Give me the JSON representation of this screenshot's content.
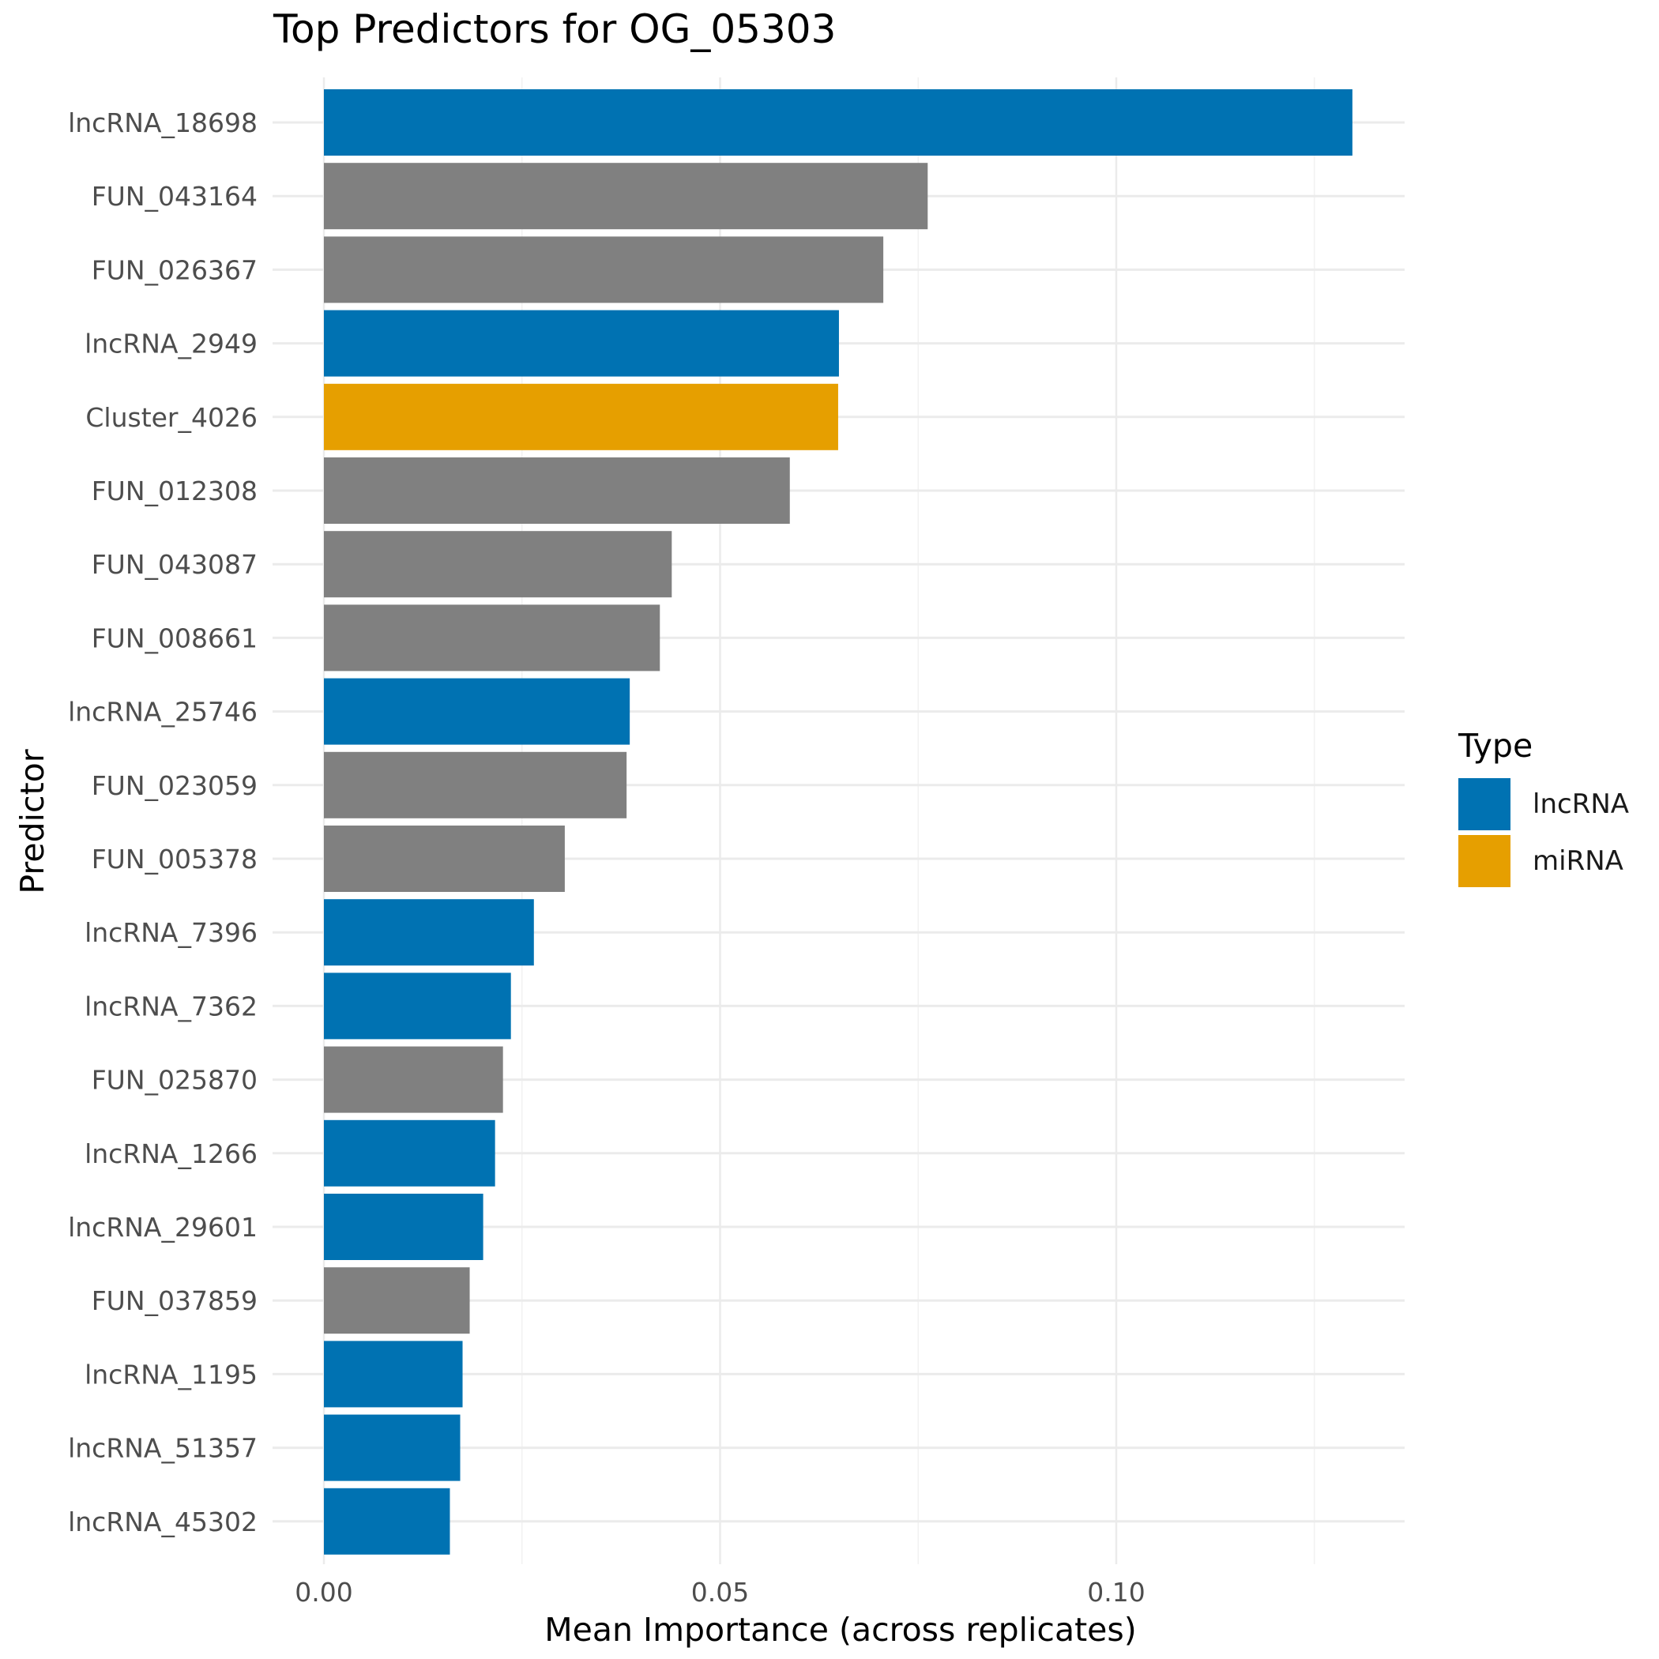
{
  "chart_data": {
    "type": "bar",
    "orientation": "horizontal",
    "title": "Top Predictors for OG_05303",
    "xlabel": "Mean Importance (across replicates)",
    "ylabel": "Predictor",
    "xlim": [
      0,
      0.1365
    ],
    "xticks": [
      0.0,
      0.05,
      0.1
    ],
    "xtick_labels": [
      "0.00",
      "0.05",
      "0.10"
    ],
    "grid": true,
    "legend_position": "right",
    "legend": {
      "title": "Type",
      "entries": [
        {
          "label": "lncRNA",
          "color": "#0072B2"
        },
        {
          "label": "miRNA",
          "color": "#E69F00"
        }
      ]
    },
    "type_colors": {
      "lncRNA": "#0072B2",
      "miRNA": "#E69F00",
      "other": "#808080"
    },
    "bars": [
      {
        "label": "lncRNA_18698",
        "value": 0.1298,
        "type": "lncRNA"
      },
      {
        "label": "FUN_043164",
        "value": 0.0762,
        "type": "other"
      },
      {
        "label": "FUN_026367",
        "value": 0.0706,
        "type": "other"
      },
      {
        "label": "lncRNA_2949",
        "value": 0.065,
        "type": "lncRNA"
      },
      {
        "label": "Cluster_4026",
        "value": 0.0649,
        "type": "miRNA"
      },
      {
        "label": "FUN_012308",
        "value": 0.0588,
        "type": "other"
      },
      {
        "label": "FUN_043087",
        "value": 0.0439,
        "type": "other"
      },
      {
        "label": "FUN_008661",
        "value": 0.0424,
        "type": "other"
      },
      {
        "label": "lncRNA_25746",
        "value": 0.0386,
        "type": "lncRNA"
      },
      {
        "label": "FUN_023059",
        "value": 0.0382,
        "type": "other"
      },
      {
        "label": "FUN_005378",
        "value": 0.0304,
        "type": "other"
      },
      {
        "label": "lncRNA_7396",
        "value": 0.0265,
        "type": "lncRNA"
      },
      {
        "label": "lncRNA_7362",
        "value": 0.0236,
        "type": "lncRNA"
      },
      {
        "label": "FUN_025870",
        "value": 0.0226,
        "type": "other"
      },
      {
        "label": "lncRNA_1266",
        "value": 0.0216,
        "type": "lncRNA"
      },
      {
        "label": "lncRNA_29601",
        "value": 0.0201,
        "type": "lncRNA"
      },
      {
        "label": "FUN_037859",
        "value": 0.0184,
        "type": "other"
      },
      {
        "label": "lncRNA_1195",
        "value": 0.0175,
        "type": "lncRNA"
      },
      {
        "label": "lncRNA_51357",
        "value": 0.0172,
        "type": "lncRNA"
      },
      {
        "label": "lncRNA_45302",
        "value": 0.0159,
        "type": "lncRNA"
      }
    ]
  }
}
